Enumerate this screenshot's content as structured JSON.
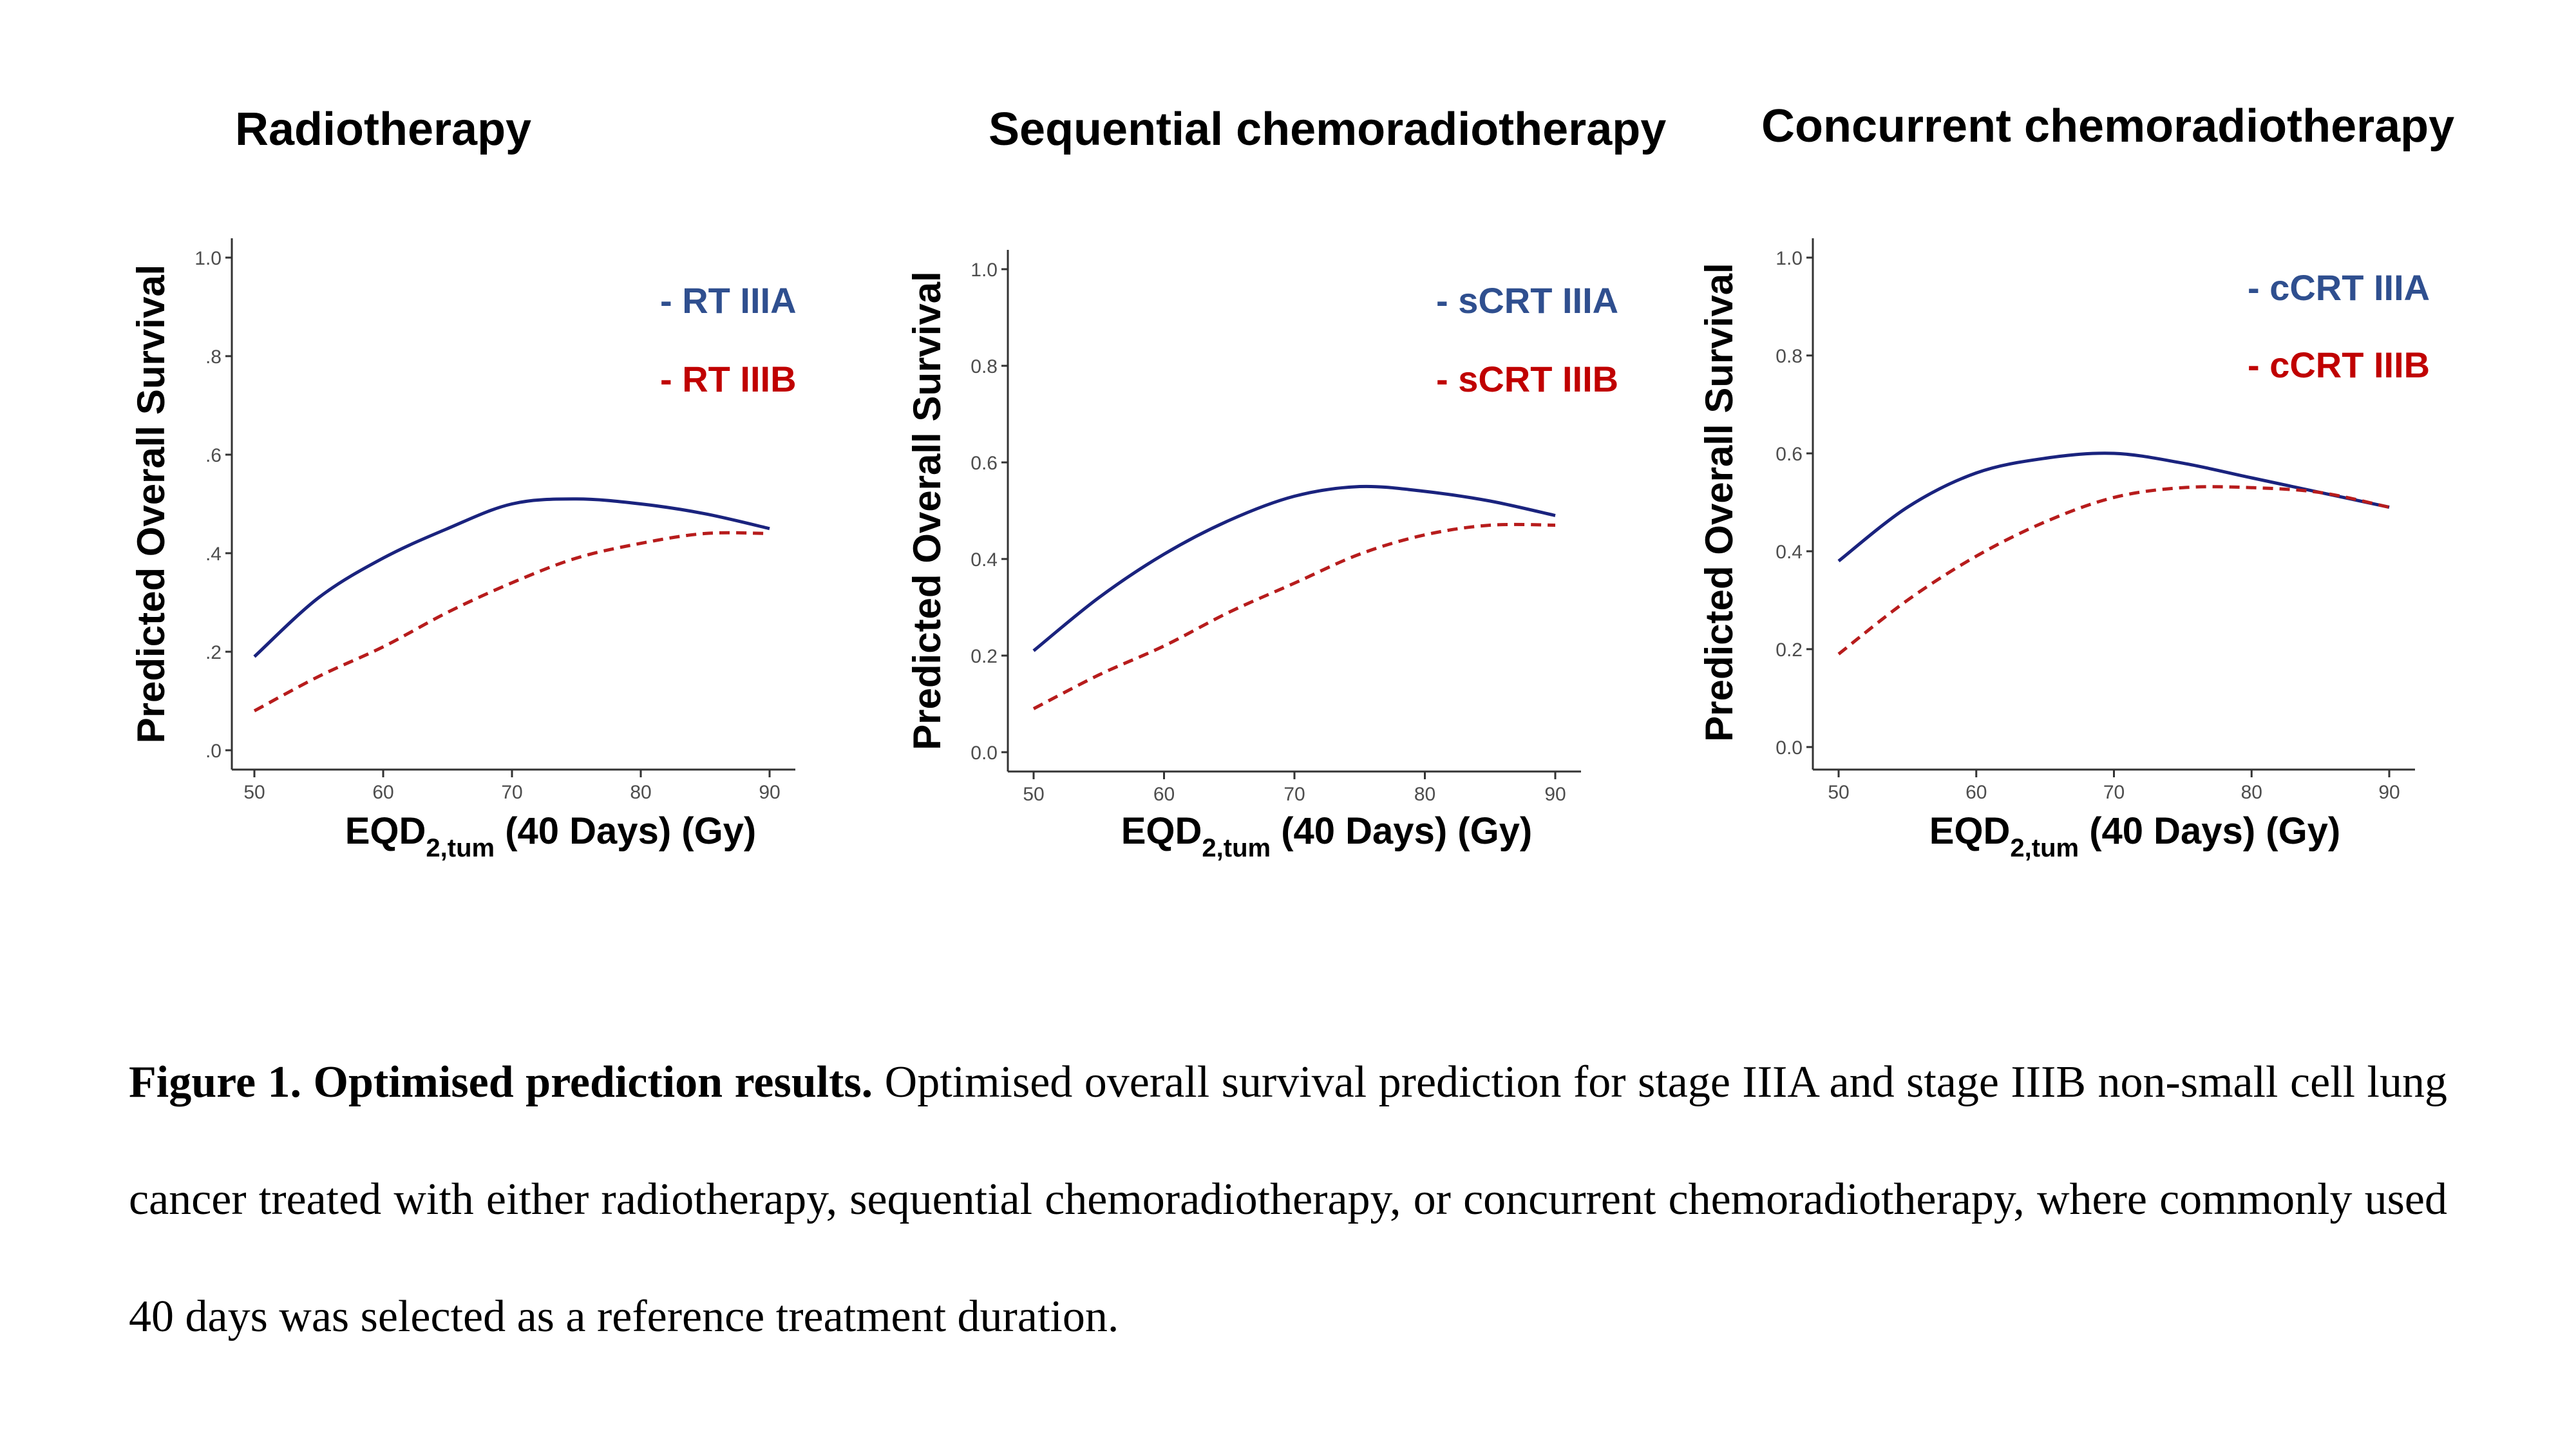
{
  "titles": [
    "Radiotherapy",
    "Sequential chemoradiotherapy",
    "Concurrent chemoradiotherapy"
  ],
  "caption": {
    "bold": "Figure 1. Optimised prediction results.",
    "text": " Optimised overall survival prediction for stage IIIA and stage IIIB non-small cell lung cancer treated with either radiotherapy, sequential chemoradiotherapy, or concurrent chemoradiotherapy, where commonly used 40 days was selected as a reference treatment duration."
  },
  "colors": {
    "IIIA": "#1a237e",
    "IIIB": "#b71c1c",
    "legendIIIA": "#2f4f8f",
    "legendIIIB": "#c00000",
    "axis": "#333333",
    "tick": "#4d4d4d"
  },
  "chart_data": [
    {
      "type": "line",
      "title": "Radiotherapy",
      "xlabel_main": "EQD",
      "xlabel_sub": "2,tum",
      "xlabel_rest": " (40 Days) (Gy)",
      "ylabel": "Predicted Overall Survival",
      "xlim": [
        50,
        90
      ],
      "ylim": [
        0.0,
        1.0
      ],
      "xticks": [
        "50",
        "60",
        "70",
        "80",
        "90"
      ],
      "yticks": [
        "0.0",
        "0.2",
        "0.4",
        "0.6",
        "0.8",
        "1.0"
      ],
      "ytick_labels_visible": [
        ".0",
        ".2",
        ".4",
        ".6",
        ".8",
        "1.0"
      ],
      "grid": false,
      "legend_position": "top-right",
      "x": [
        50,
        55,
        60,
        65,
        70,
        75,
        80,
        85,
        90
      ],
      "series": [
        {
          "name": "- RT IIIA",
          "style": "solid",
          "values": [
            0.19,
            0.31,
            0.39,
            0.45,
            0.5,
            0.51,
            0.5,
            0.48,
            0.45
          ]
        },
        {
          "name": "- RT IIIB",
          "style": "dashed",
          "values": [
            0.08,
            0.15,
            0.21,
            0.28,
            0.34,
            0.39,
            0.42,
            0.44,
            0.44
          ]
        }
      ]
    },
    {
      "type": "line",
      "title": "Sequential chemoradiotherapy",
      "xlabel_main": "EQD",
      "xlabel_sub": "2,tum",
      "xlabel_rest": " (40 Days) (Gy)",
      "ylabel": "Predicted Overall Survival",
      "xlim": [
        50,
        90
      ],
      "ylim": [
        0.0,
        1.0
      ],
      "xticks": [
        "50",
        "60",
        "70",
        "80",
        "90"
      ],
      "yticks": [
        "0.0",
        "0.2",
        "0.4",
        "0.6",
        "0.8",
        "1.0"
      ],
      "ytick_labels_visible": [
        "0.0",
        "0.2",
        "0.4",
        "0.6",
        "0.8",
        "1.0"
      ],
      "grid": false,
      "legend_position": "top-right",
      "x": [
        50,
        55,
        60,
        65,
        70,
        75,
        80,
        85,
        90
      ],
      "series": [
        {
          "name": "- sCRT IIIA",
          "style": "solid",
          "values": [
            0.21,
            0.32,
            0.41,
            0.48,
            0.53,
            0.55,
            0.54,
            0.52,
            0.49
          ]
        },
        {
          "name": "- sCRT IIIB",
          "style": "dashed",
          "values": [
            0.09,
            0.16,
            0.22,
            0.29,
            0.35,
            0.41,
            0.45,
            0.47,
            0.47
          ]
        }
      ]
    },
    {
      "type": "line",
      "title": "Concurrent chemoradiotherapy",
      "xlabel_main": "EQD",
      "xlabel_sub": "2,tum",
      "xlabel_rest": " (40 Days) (Gy)",
      "ylabel": "Predicted Overall Survival",
      "xlim": [
        50,
        90
      ],
      "ylim": [
        0.0,
        1.0
      ],
      "xticks": [
        "50",
        "60",
        "70",
        "80",
        "90"
      ],
      "yticks": [
        "0.0",
        "0.2",
        "0.4",
        "0.6",
        "0.8",
        "1.0"
      ],
      "ytick_labels_visible": [
        "0.0",
        "0.2",
        "0.4",
        "0.6",
        "0.8",
        "1.0"
      ],
      "grid": false,
      "legend_position": "top-right",
      "x": [
        50,
        55,
        60,
        65,
        70,
        75,
        80,
        85,
        90
      ],
      "series": [
        {
          "name": "- cCRT IIIA",
          "style": "solid",
          "values": [
            0.38,
            0.49,
            0.56,
            0.59,
            0.6,
            0.58,
            0.55,
            0.52,
            0.49
          ]
        },
        {
          "name": "- cCRT IIIB",
          "style": "dashed",
          "values": [
            0.19,
            0.3,
            0.39,
            0.46,
            0.51,
            0.53,
            0.53,
            0.52,
            0.49
          ]
        }
      ]
    }
  ]
}
